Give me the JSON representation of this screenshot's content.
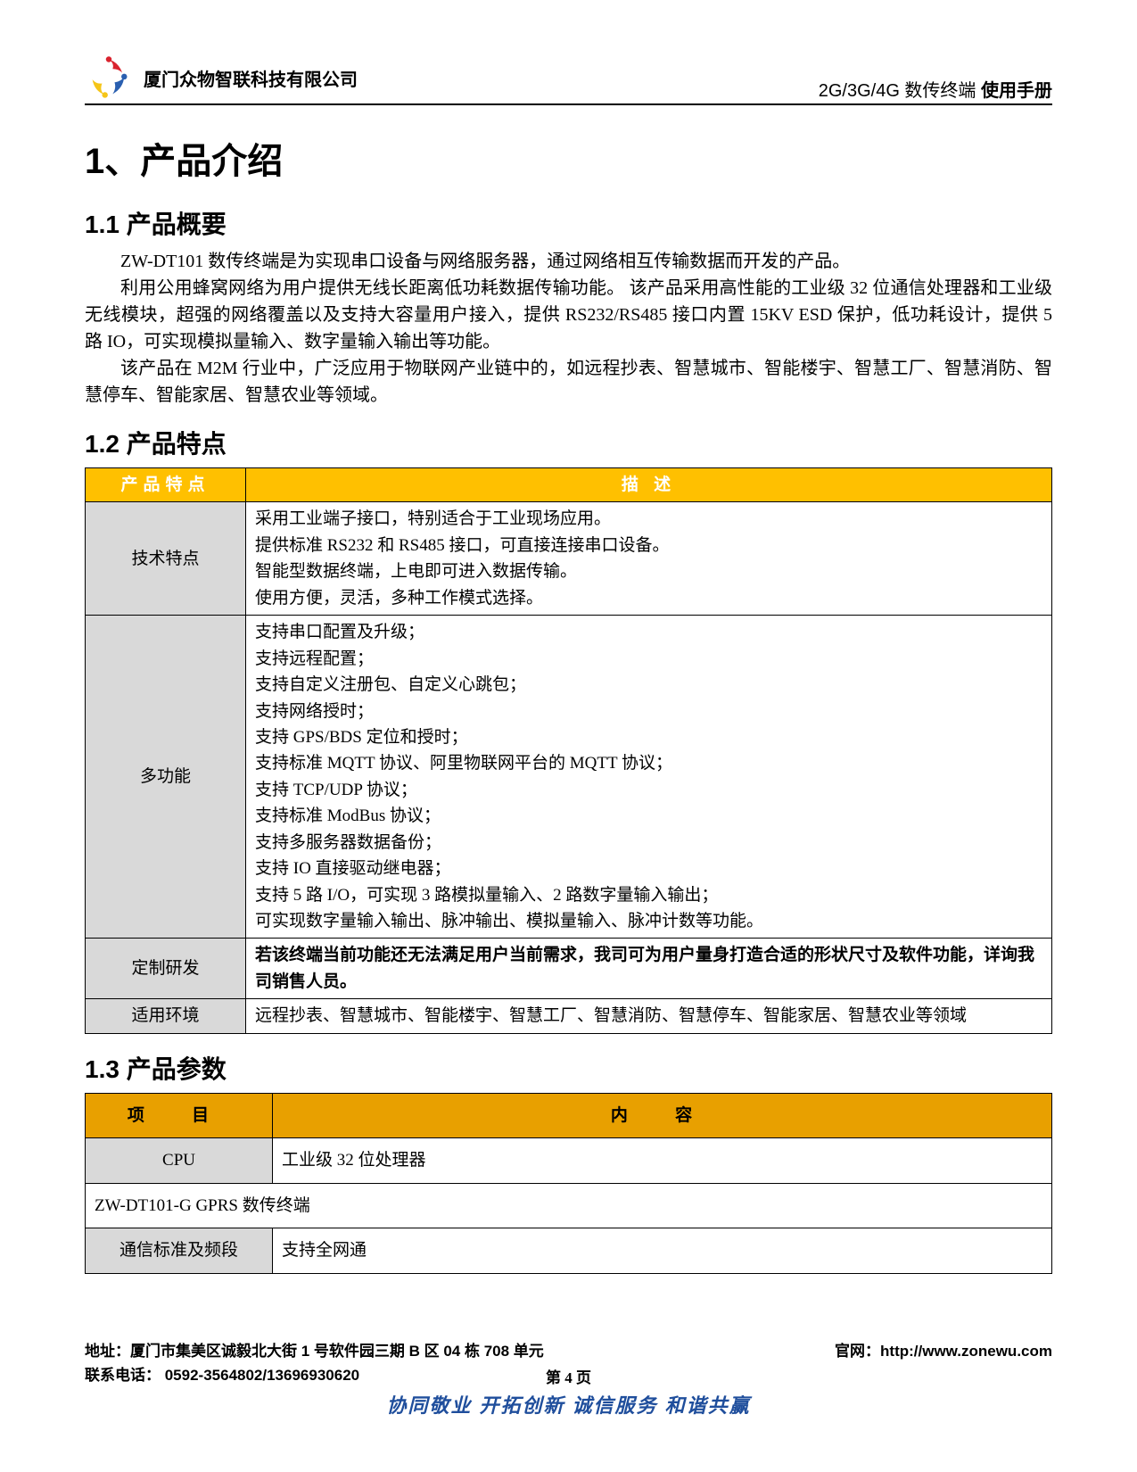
{
  "header": {
    "company": "厦门众物智联科技有限公司",
    "docTitleLeft": "2G/3G/4G 数传终端",
    "docTitleRight": "使用手册"
  },
  "h1": "1、产品介绍",
  "s11": {
    "title": "1.1 产品概要",
    "p1": "ZW-DT101 数传终端是为实现串口设备与网络服务器，通过网络相互传输数据而开发的产品。",
    "p2": "利用公用蜂窝网络为用户提供无线长距离低功耗数据传输功能。 该产品采用高性能的工业级 32 位通信处理器和工业级无线模块，超强的网络覆盖以及支持大容量用户接入，提供 RS232/RS485 接口内置 15KV ESD 保护，低功耗设计，提供 5 路 IO，可实现模拟量输入、数字量输入输出等功能。",
    "p3": "该产品在 M2M 行业中，广泛应用于物联网产业链中的，如远程抄表、智慧城市、智能楼宇、智慧工厂、智慧消防、智慧停车、智能家居、智慧农业等领域。"
  },
  "s12": {
    "title": "1.2 产品特点",
    "headers": {
      "c1": "产品特点",
      "c2": "描  述"
    },
    "rows": [
      {
        "label": "技术特点",
        "lines": [
          "采用工业端子接口，特别适合于工业现场应用。",
          "提供标准 RS232 和 RS485 接口，可直接连接串口设备。",
          "智能型数据终端，上电即可进入数据传输。",
          "使用方便，灵活，多种工作模式选择。"
        ]
      },
      {
        "label": "多功能",
        "lines": [
          "支持串口配置及升级；",
          "支持远程配置；",
          "支持自定义注册包、自定义心跳包；",
          "支持网络授时；",
          "支持 GPS/BDS 定位和授时；",
          "支持标准 MQTT 协议、阿里物联网平台的 MQTT 协议；",
          "支持 TCP/UDP 协议；",
          "支持标准 ModBus 协议；",
          "支持多服务器数据备份；",
          "支持 IO 直接驱动继电器；",
          "支持 5 路 I/O，可实现 3 路模拟量输入、2 路数字量输入输出；",
          "可实现数字量输入输出、脉冲输出、模拟量输入、脉冲计数等功能。"
        ]
      },
      {
        "label": "定制研发",
        "bold": true,
        "lines": [
          "若该终端当前功能还无法满足用户当前需求，我司可为用户量身打造合适的形状尺寸及软件功能，详询我司销售人员。"
        ]
      },
      {
        "label": "适用环境",
        "lines": [
          "远程抄表、智慧城市、智能楼宇、智慧工厂、智慧消防、智慧停车、智能家居、智慧农业等领域"
        ]
      }
    ]
  },
  "s13": {
    "title": "1.3 产品参数",
    "headers": {
      "c1": "项 目",
      "c2": "内 容"
    },
    "rows": [
      {
        "label": "CPU",
        "value": "工业级 32 位处理器"
      },
      {
        "span": "ZW-DT101-G GPRS 数传终端"
      },
      {
        "label": "通信标准及频段",
        "value": "支持全网通"
      }
    ]
  },
  "footer": {
    "address": "地址：厦门市集美区诚毅北大街 1 号软件园三期 B 区 04 栋 708 单元",
    "website": "官网：http://www.zonewu.com",
    "phone": "联系电话： 0592-3564802/13696930620",
    "pageNum": "第 4 页",
    "slogan": "协同敬业 开拓创新 诚信服务 和谐共赢"
  },
  "colors": {
    "orange": "#ffc000",
    "orange2": "#e8a000",
    "gray": "#d9d9d9",
    "sloganBlue": "#1f4e9c"
  }
}
